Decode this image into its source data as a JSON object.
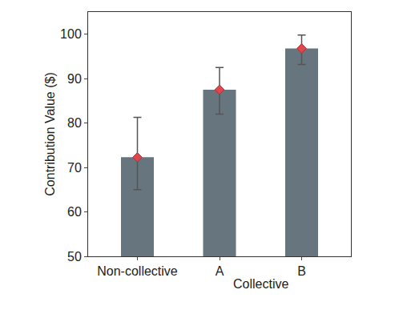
{
  "chart_data": {
    "type": "bar",
    "y_label": "Contribution Value ($)",
    "categories": [
      "Non-collective",
      "A",
      "B"
    ],
    "values": [
      72.3,
      87.5,
      96.8
    ],
    "error_plus": [
      9.0,
      5.0,
      3.0
    ],
    "error_minus": [
      7.3,
      5.5,
      3.6
    ],
    "color": "#67757e",
    "marker": "diamond",
    "annotations": [
      {
        "text": "Collective",
        "categories": [
          "A",
          "B"
        ]
      }
    ],
    "ylim": [
      50,
      105
    ],
    "yticks": [
      50,
      60,
      70,
      80,
      90,
      100
    ],
    "grid": false
  }
}
